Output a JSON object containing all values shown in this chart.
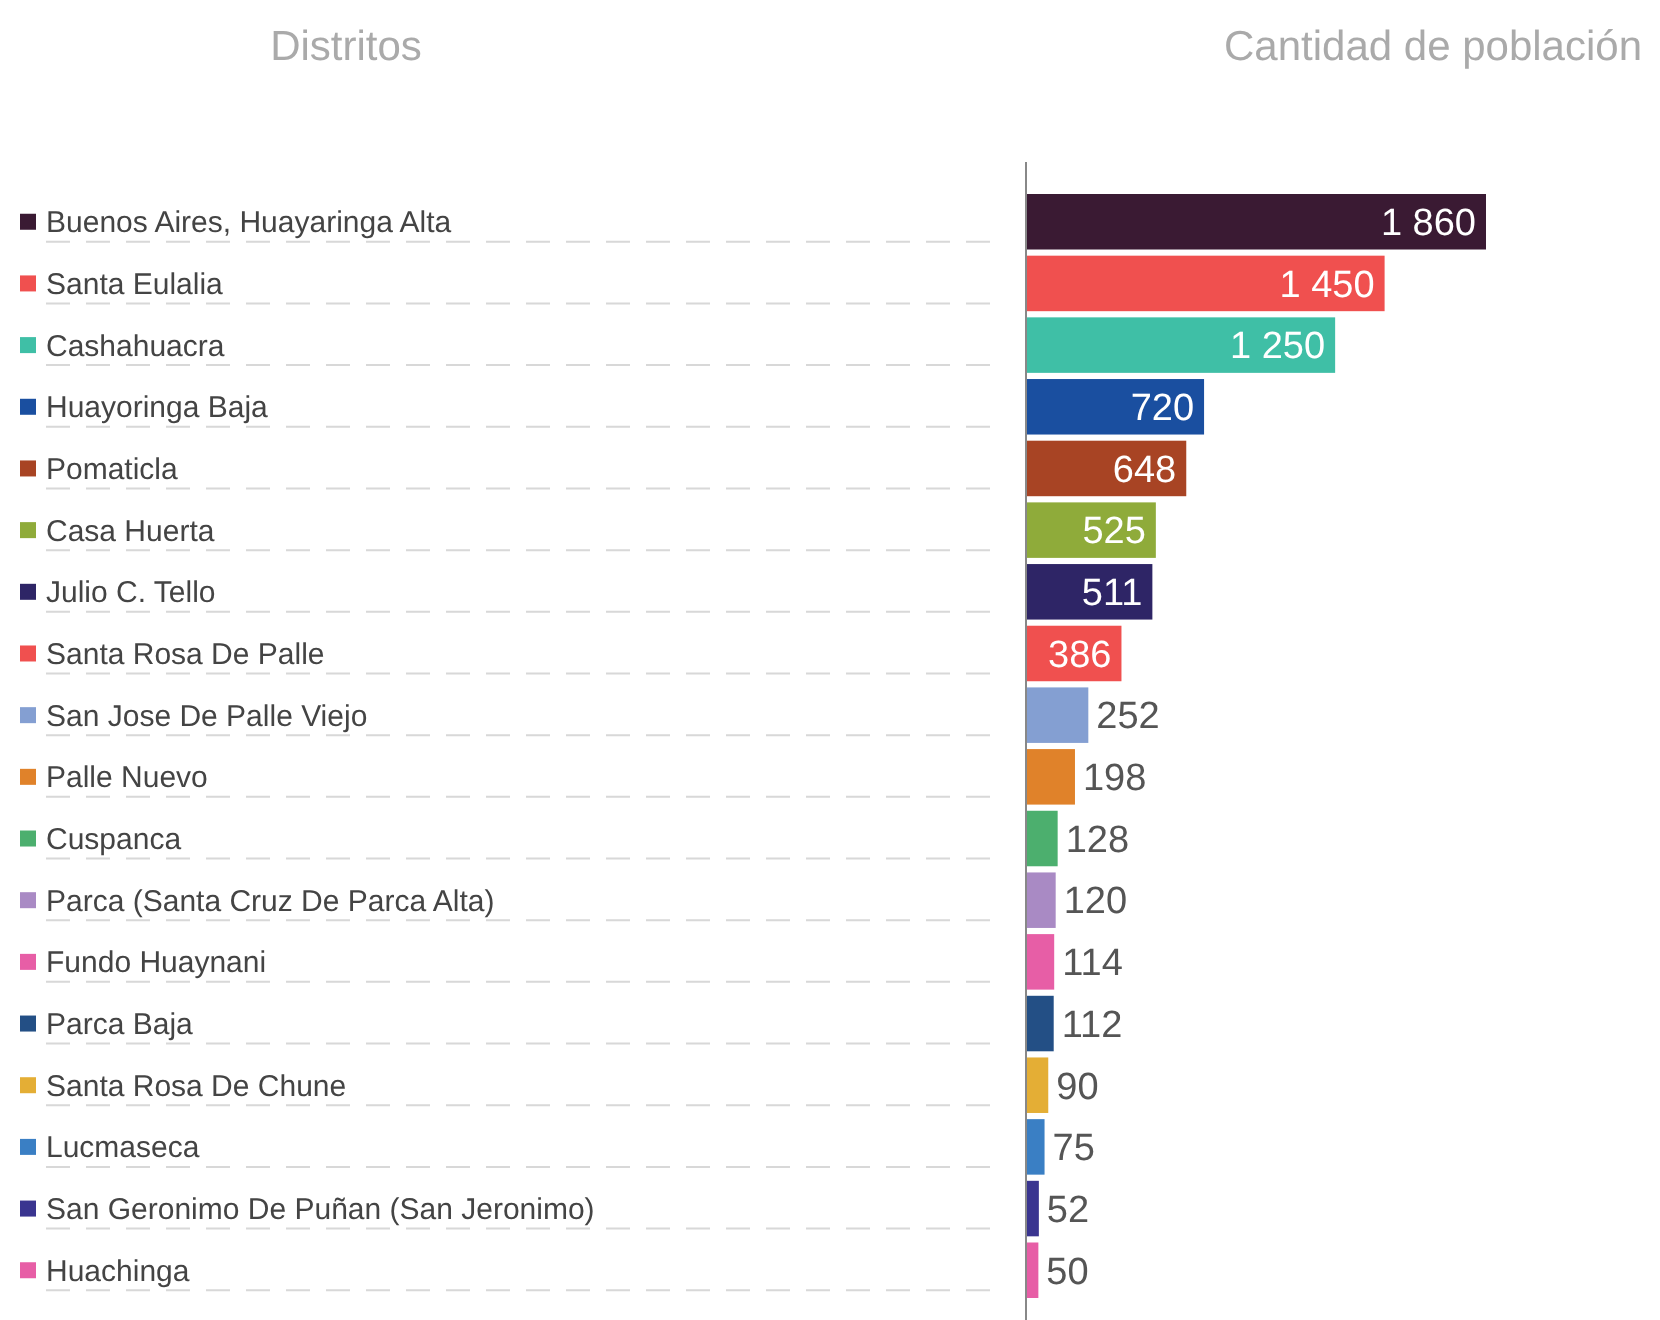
{
  "chart_data": {
    "type": "bar",
    "orientation": "horizontal",
    "ylabel": "Distritos",
    "xlabel": "Cantidad de población",
    "categories": [
      "Buenos Aires, Huayaringa Alta",
      "Santa Eulalia",
      "Cashahuacra",
      "Huayoringa Baja",
      "Pomaticla",
      "Casa Huerta",
      "Julio C. Tello",
      "Santa Rosa De Palle",
      "San Jose De Palle Viejo",
      "Palle Nuevo",
      "Cuspanca",
      "Parca (Santa Cruz De Parca Alta)",
      "Fundo Huaynani",
      "Parca Baja",
      "Santa Rosa De Chune",
      "Lucmaseca",
      "San Geronimo De Puñan (San Jeronimo)",
      "Huachinga"
    ],
    "values": [
      1860,
      1450,
      1250,
      720,
      648,
      525,
      511,
      386,
      252,
      198,
      128,
      120,
      114,
      112,
      90,
      75,
      52,
      50
    ],
    "colors": [
      "#3a1a33",
      "#f0504f",
      "#3fbfa6",
      "#1a4fa0",
      "#a84424",
      "#8fab3a",
      "#2e2566",
      "#f0504f",
      "#849fd2",
      "#e0822a",
      "#4caf6e",
      "#a98ac4",
      "#e75ea6",
      "#234f85",
      "#e4ae35",
      "#3a7fc4",
      "#3a3590",
      "#e75ea6"
    ],
    "data_labels": true,
    "value_labels": [
      "1 860",
      "1 450",
      "1 250",
      "720",
      "648",
      "525",
      "511",
      "386",
      "252",
      "198",
      "128",
      "120",
      "114",
      "112",
      "90",
      "75",
      "52",
      "50"
    ]
  }
}
